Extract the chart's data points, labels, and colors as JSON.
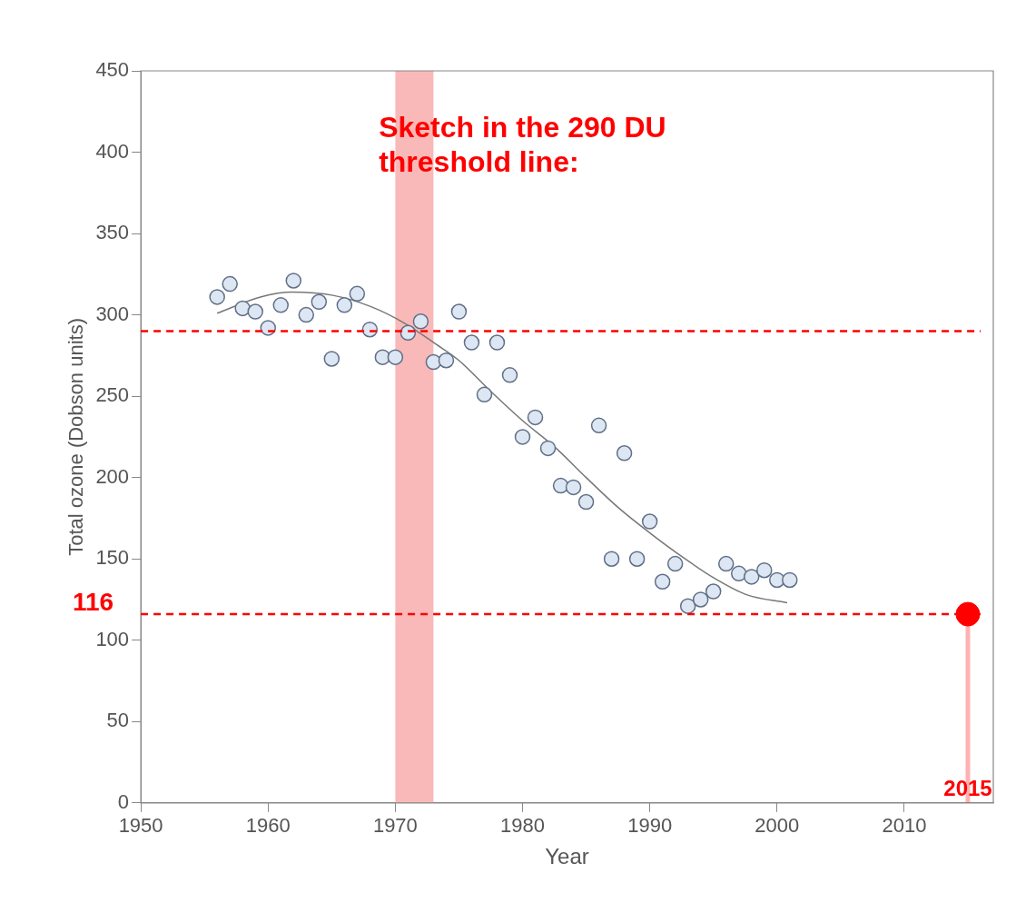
{
  "chart_data": {
    "type": "scatter",
    "xlabel": "Year",
    "ylabel": "Total ozone (Dobson units)",
    "xlim": [
      1950,
      2017
    ],
    "xticks": [
      1950,
      1960,
      1970,
      1980,
      1990,
      2000,
      2010
    ],
    "ylim": [
      0,
      450
    ],
    "yticks": [
      0,
      50,
      100,
      150,
      200,
      250,
      300,
      350,
      400,
      450
    ],
    "grid": false,
    "legend": false,
    "marker": "circle",
    "series": [
      {
        "color": "#dde6f3",
        "x": [
          1956,
          1957,
          1958,
          1959,
          1960,
          1961,
          1962,
          1963,
          1964,
          1965,
          1966,
          1967,
          1968,
          1969,
          1970,
          1971,
          1972,
          1973,
          1974,
          1975,
          1976,
          1977,
          1978,
          1979,
          1980,
          1981,
          1982,
          1983,
          1984,
          1985,
          1986,
          1987,
          1988,
          1989,
          1990,
          1991,
          1992,
          1993,
          1994,
          1995,
          1996,
          1997,
          1998,
          1999,
          2000,
          2001
        ],
        "values": [
          311,
          319,
          304,
          302,
          292,
          306,
          321,
          300,
          308,
          273,
          306,
          313,
          291,
          274,
          274,
          289,
          296,
          271,
          272,
          302,
          283,
          251,
          283,
          263,
          225,
          237,
          218,
          195,
          194,
          185,
          232,
          150,
          215,
          150,
          173,
          136,
          147,
          121,
          125,
          130,
          147,
          141,
          139,
          143,
          137,
          137
        ]
      },
      {
        "type": "line",
        "color": "#777777",
        "marker": "none",
        "line_style": "solid",
        "x": [
          1956,
          1959.4,
          1961.9,
          1965.1,
          1968.1,
          1970.7,
          1973.2,
          1975,
          1977.5,
          1980,
          1982.5,
          1985,
          1987.6,
          1990,
          1992.6,
          1995.1,
          1997.6,
          2000.8
        ],
        "values": [
          301,
          311,
          314,
          312,
          305,
          295,
          282,
          272,
          253,
          235,
          219,
          200,
          181,
          166,
          151,
          138,
          128,
          123
        ]
      },
      {
        "type": "lollipop",
        "color": "#ff0000",
        "x": [
          2015
        ],
        "values": [
          116
        ]
      }
    ],
    "bands": [
      {
        "axis": "x",
        "from": 1970,
        "to": 1973,
        "color": "#f9b9b9"
      }
    ],
    "ref_lines": [
      {
        "axis": "y",
        "value": 290,
        "color": "#ff0000",
        "line_style": "dashed"
      },
      {
        "axis": "y",
        "value": 116,
        "label": "116",
        "color": "#ff0000",
        "line_style": "dashed"
      }
    ],
    "annotations": [
      "Sketch in the 290 DU threshold line:",
      "2015"
    ]
  }
}
